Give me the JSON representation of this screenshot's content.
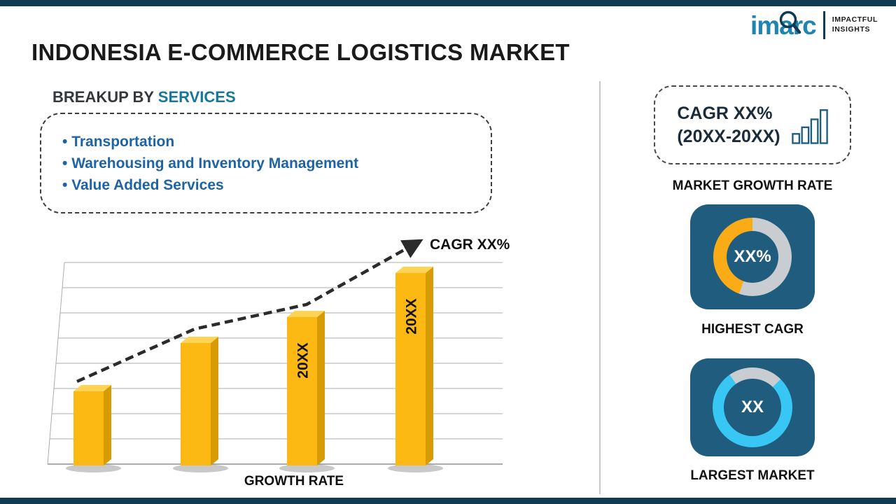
{
  "meta": {
    "background_color": "#FFFFFF",
    "strip_color": "#113B52",
    "card_color": "#1F5C7D",
    "divider_color": "#C8C8C8"
  },
  "logo": {
    "name": "imarc",
    "tagline_line1": "IMPACTFUL",
    "tagline_line2": "INSIGHTS",
    "color": "#1E85B0"
  },
  "header": {
    "title": "INDONESIA E-COMMERCE LOGISTICS MARKET"
  },
  "breakup": {
    "heading_prefix": "BREAKUP BY ",
    "heading_accent": "SERVICES",
    "items": [
      "Transportation",
      "Warehousing and Inventory Management",
      "Value Added Services"
    ]
  },
  "chart_data": {
    "type": "bar",
    "title": "",
    "xlabel": "GROWTH RATE",
    "ylabel": "",
    "categories": [
      "",
      "",
      "20XX",
      "20XX"
    ],
    "values": [
      1.0,
      1.65,
      2.0,
      2.6
    ],
    "trend_label": "CAGR XX%",
    "bar_color": "#FDB913",
    "bar_side_color": "#D79B05",
    "bar_top_color": "#FFD355",
    "trend_color": "#2B2B2B",
    "gridlines": true,
    "legend": null
  },
  "right_panel": {
    "growth_box": {
      "line1": "CAGR XX%",
      "line2": "(20XX-20XX)"
    },
    "market_growth_rate_label": "MARKET GROWTH RATE",
    "highest_cagr": {
      "value": "XX%",
      "label": "HIGHEST CAGR",
      "arc_color": "#F9AC15",
      "track_color": "#C9CDD1",
      "track_deg": 200,
      "start_deg": 0
    },
    "largest_market": {
      "value": "XX",
      "label": "LARGEST MARKET",
      "arc_color": "#38C6F4",
      "track_color": "#C9CDD1",
      "track_deg": 80,
      "start_deg": -35
    }
  }
}
